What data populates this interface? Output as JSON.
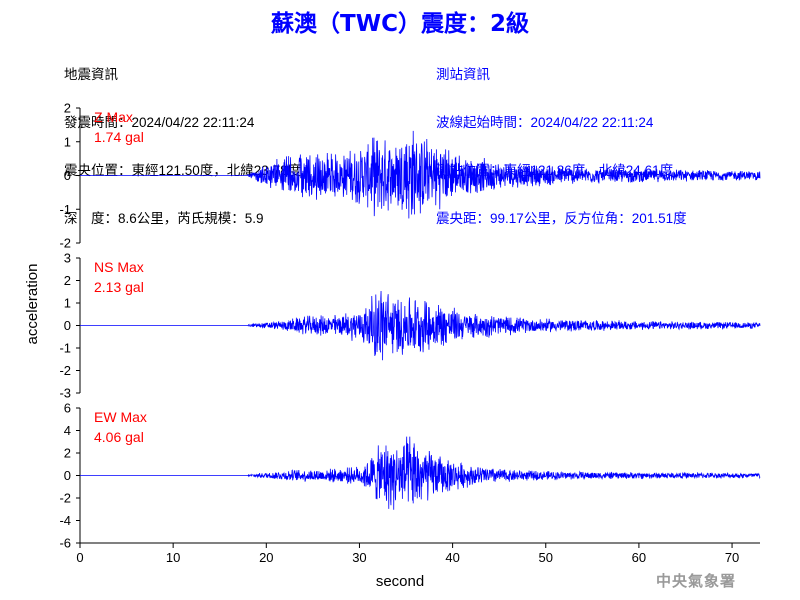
{
  "title": "蘇澳（TWC）震度：2級",
  "quake_info": {
    "heading": "地震資訊",
    "origin_time_label": "發震時間：",
    "origin_time": "2024/04/22 22:11:24",
    "epicenter_label": "震央位置：東經",
    "epicenter_lon": "121.50",
    "epicenter_mid": "度，北緯",
    "epicenter_lat": "23.78",
    "epicenter_end": "度",
    "depth_label": "深　度：",
    "depth": "8.6",
    "depth_mid": "公里，芮氏規模：",
    "magnitude": "5.9"
  },
  "station_info": {
    "heading": "測站資訊",
    "wave_start_label": "波線起始時間：",
    "wave_start": "2024/04/22 22:11:24",
    "location_label": "測站位置：東經",
    "location_lon": "121.86",
    "location_mid": "度，北緯",
    "location_lat": "24.61",
    "location_end": "度",
    "distance_label": "震央距：",
    "distance": "99.17",
    "distance_mid": "公里，反方位角：",
    "back_azimuth": "201.51",
    "distance_end": "度"
  },
  "watermark": "中央氣象署",
  "colors": {
    "title": "#0000ff",
    "trace": "#0000ff",
    "max_label": "#ff0000",
    "axis": "#000000",
    "station_info": "#0000ff",
    "watermark": "#9a9a9a"
  },
  "chart_data": [
    {
      "type": "line",
      "channel": "Z",
      "max_label": "Z Max",
      "max_value": "1.74 gal",
      "ylabel": "acceleration",
      "xlabel": "",
      "ylim": [
        -2,
        2
      ],
      "yticks": [
        -2,
        -1,
        0,
        1,
        2
      ],
      "xlim": [
        0,
        73
      ],
      "onset_s": 18,
      "envelope": [
        [
          0,
          0
        ],
        [
          17.8,
          0
        ],
        [
          18.5,
          0.12
        ],
        [
          19.8,
          0.35
        ],
        [
          21,
          0.5
        ],
        [
          22,
          0.6
        ],
        [
          23.5,
          0.7
        ],
        [
          25,
          0.8
        ],
        [
          26.5,
          0.75
        ],
        [
          28,
          0.7
        ],
        [
          29.5,
          0.85
        ],
        [
          31,
          1.05
        ],
        [
          32,
          1.4
        ],
        [
          33,
          1.1
        ],
        [
          34,
          1.2
        ],
        [
          35,
          1.5
        ],
        [
          35.5,
          1.74
        ],
        [
          36,
          1.4
        ],
        [
          37,
          1.2
        ],
        [
          38,
          1.1
        ],
        [
          39,
          1.0
        ],
        [
          40,
          0.8
        ],
        [
          41,
          0.6
        ],
        [
          42,
          0.6
        ],
        [
          44,
          0.5
        ],
        [
          46,
          0.4
        ],
        [
          48,
          0.35
        ],
        [
          52,
          0.3
        ],
        [
          56,
          0.25
        ],
        [
          60,
          0.22
        ],
        [
          66,
          0.18
        ],
        [
          73,
          0.15
        ]
      ]
    },
    {
      "type": "line",
      "channel": "NS",
      "max_label": "NS Max",
      "max_value": "2.13 gal",
      "ylabel": "acceleration",
      "xlabel": "",
      "ylim": [
        -3,
        3
      ],
      "yticks": [
        -3,
        -2,
        -1,
        0,
        1,
        2,
        3
      ],
      "xlim": [
        0,
        73
      ],
      "onset_s": 18,
      "envelope": [
        [
          0,
          0
        ],
        [
          17.8,
          0
        ],
        [
          18.5,
          0.1
        ],
        [
          20,
          0.15
        ],
        [
          22,
          0.25
        ],
        [
          24,
          0.45
        ],
        [
          26,
          0.5
        ],
        [
          28,
          0.55
        ],
        [
          30,
          0.8
        ],
        [
          31,
          1.2
        ],
        [
          32,
          1.8
        ],
        [
          32.5,
          2.13
        ],
        [
          33,
          1.7
        ],
        [
          34,
          1.4
        ],
        [
          35,
          1.5
        ],
        [
          36,
          1.4
        ],
        [
          37,
          1.3
        ],
        [
          38,
          1.2
        ],
        [
          39,
          1.1
        ],
        [
          40,
          0.9
        ],
        [
          41,
          0.7
        ],
        [
          42,
          0.6
        ],
        [
          44,
          0.55
        ],
        [
          46,
          0.45
        ],
        [
          48,
          0.35
        ],
        [
          52,
          0.3
        ],
        [
          56,
          0.25
        ],
        [
          62,
          0.2
        ],
        [
          73,
          0.15
        ]
      ]
    },
    {
      "type": "line",
      "channel": "EW",
      "max_label": "EW Max",
      "max_value": "4.06 gal",
      "ylabel": "acceleration",
      "xlabel": "second",
      "ylim": [
        -6,
        6
      ],
      "yticks": [
        -6,
        -4,
        -2,
        0,
        2,
        4,
        6
      ],
      "xlim": [
        0,
        73
      ],
      "xticks": [
        0,
        10,
        20,
        30,
        40,
        50,
        60,
        70
      ],
      "onset_s": 18,
      "envelope": [
        [
          0,
          0
        ],
        [
          17.8,
          0
        ],
        [
          18.5,
          0.15
        ],
        [
          20,
          0.3
        ],
        [
          22,
          0.5
        ],
        [
          24,
          0.6
        ],
        [
          26,
          0.6
        ],
        [
          28,
          0.7
        ],
        [
          30,
          0.9
        ],
        [
          31,
          1.6
        ],
        [
          32,
          2.8
        ],
        [
          33,
          3.5
        ],
        [
          34,
          3.2
        ],
        [
          35,
          3.6
        ],
        [
          35.5,
          4.06
        ],
        [
          36,
          3.5
        ],
        [
          37,
          2.8
        ],
        [
          38,
          2.2
        ],
        [
          39,
          1.8
        ],
        [
          40,
          1.5
        ],
        [
          42,
          1.0
        ],
        [
          44,
          0.8
        ],
        [
          46,
          0.6
        ],
        [
          48,
          0.5
        ],
        [
          52,
          0.4
        ],
        [
          56,
          0.35
        ],
        [
          62,
          0.3
        ],
        [
          73,
          0.25
        ]
      ]
    }
  ]
}
